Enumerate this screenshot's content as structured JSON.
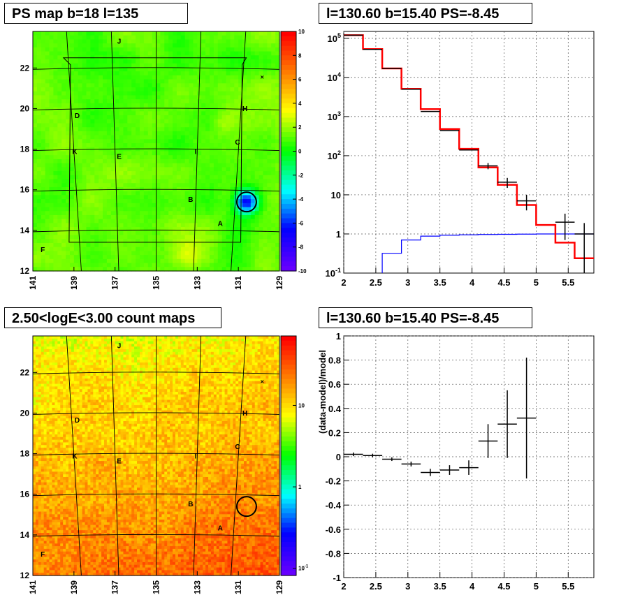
{
  "panels": {
    "tl_title": "PS map b=18 l=135",
    "tr_title": "l=130.60 b=15.40 PS=-8.45",
    "bl_title": "2.50<logE<3.00 count maps",
    "br_title": "l=130.60 b=15.40 PS=-8.45"
  },
  "chart_data": [
    {
      "type": "heatmap",
      "title": "PS map b=18 l=135",
      "x_ticks": [
        "141",
        "139",
        "137",
        "135",
        "133",
        "131",
        "129"
      ],
      "y_ticks": [
        "12",
        "14",
        "16",
        "18",
        "20",
        "22"
      ],
      "xlim": [
        141,
        129
      ],
      "ylim": [
        12,
        23.8
      ],
      "colorbar": {
        "min": -10,
        "max": 10,
        "ticks": [
          "10",
          "8",
          "6",
          "4",
          "2",
          "0",
          "-2",
          "-4",
          "-6",
          "-8",
          "-10"
        ]
      },
      "labels": [
        "J",
        "D",
        "H",
        "C",
        "K",
        "E",
        "I",
        "B",
        "A",
        "F"
      ],
      "marker": {
        "l": 130.6,
        "b": 15.4
      }
    },
    {
      "type": "line",
      "title": "l=130.60 b=15.40 PS=-8.45",
      "log_y": true,
      "xlim": [
        2,
        5.9
      ],
      "ylim": [
        0.1,
        150000
      ],
      "x_ticks": [
        "2",
        "2.5",
        "3",
        "3.5",
        "4",
        "4.5",
        "5",
        "5.5"
      ],
      "y_ticks": [
        "10^5",
        "10^4",
        "10^3",
        "10^2",
        "10",
        "1",
        "10^-1"
      ],
      "series": [
        {
          "kind": "data",
          "color": "#000000",
          "x": [
            2.15,
            2.45,
            2.75,
            3.05,
            3.35,
            3.65,
            3.95,
            4.25,
            4.55,
            4.85,
            5.15,
            5.45,
            5.75
          ],
          "y": [
            120000,
            52000,
            17000,
            5000,
            1350,
            440,
            140,
            55,
            21,
            7,
            0,
            2,
            1
          ],
          "yerr": [
            0,
            0,
            0,
            0,
            0,
            0,
            0,
            10,
            6,
            3,
            0,
            1.3,
            0.9
          ]
        },
        {
          "kind": "model",
          "color": "#ff0000",
          "edges": [
            2.0,
            2.3,
            2.6,
            2.9,
            3.2,
            3.5,
            3.8,
            4.1,
            4.4,
            4.7,
            5.0,
            5.3,
            5.6,
            5.9
          ],
          "y": [
            120000,
            53000,
            17000,
            5100,
            1550,
            480,
            150,
            50,
            18,
            5.5,
            1.7,
            0.6,
            0.24
          ]
        },
        {
          "kind": "background",
          "color": "#0000ff",
          "edges": [
            2.0,
            2.3,
            2.6,
            2.9,
            3.2,
            3.5,
            3.8,
            4.1,
            4.4,
            4.7,
            5.0,
            5.3,
            5.6,
            5.9
          ],
          "y": [
            0.05,
            0.05,
            0.32,
            0.7,
            0.88,
            0.93,
            0.95,
            0.97,
            0.98,
            0.99,
            1.0,
            1.0,
            1.0
          ]
        }
      ]
    },
    {
      "type": "heatmap",
      "title": "2.50<logE<3.00 count maps",
      "x_ticks": [
        "141",
        "139",
        "137",
        "135",
        "133",
        "131",
        "129"
      ],
      "y_ticks": [
        "12",
        "14",
        "16",
        "18",
        "20",
        "22"
      ],
      "xlim": [
        141,
        129
      ],
      "ylim": [
        12,
        23.8
      ],
      "colorbar": {
        "log": true,
        "ticks": [
          "10",
          "1",
          "10^-1"
        ]
      },
      "labels": [
        "J",
        "D",
        "H",
        "C",
        "K",
        "E",
        "I",
        "B",
        "A",
        "F"
      ],
      "marker": {
        "l": 130.6,
        "b": 15.4
      }
    },
    {
      "type": "scatter",
      "title": "l=130.60 b=15.40 PS=-8.45",
      "ylabel": "(data-model)/model",
      "xlim": [
        2,
        5.9
      ],
      "ylim": [
        -1,
        1
      ],
      "x_ticks": [
        "2",
        "2.5",
        "3",
        "3.5",
        "4",
        "4.5",
        "5",
        "5.5"
      ],
      "y_ticks": [
        "1",
        "0.8",
        "0.6",
        "0.4",
        "0.2",
        "0",
        "-0.2",
        "-0.4",
        "-0.6",
        "-0.8",
        "-1"
      ],
      "x": [
        2.15,
        2.45,
        2.75,
        3.05,
        3.35,
        3.65,
        3.95,
        4.25,
        4.55,
        4.85
      ],
      "y": [
        0.02,
        0.01,
        -0.02,
        -0.06,
        -0.13,
        -0.11,
        -0.09,
        0.13,
        0.27,
        0.32
      ],
      "xerr": 0.15,
      "yerr": [
        0.015,
        0.015,
        0.015,
        0.02,
        0.03,
        0.04,
        0.06,
        0.14,
        0.28,
        0.5
      ]
    }
  ]
}
